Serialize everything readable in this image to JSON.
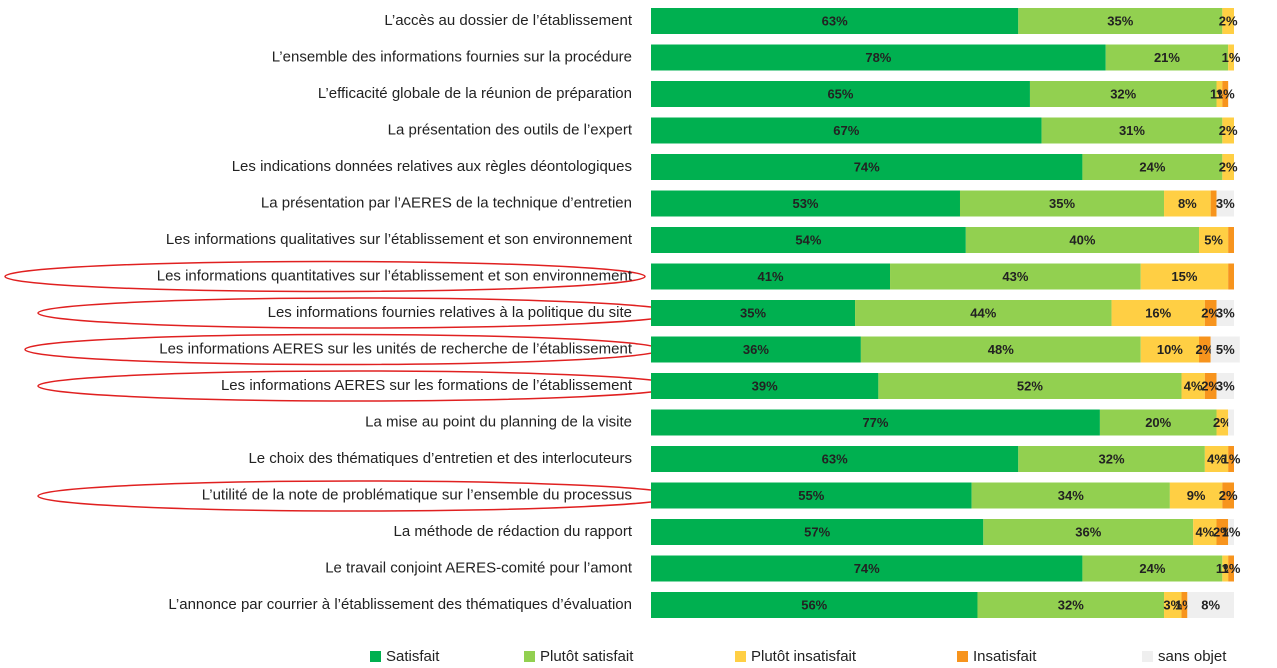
{
  "chart_data": {
    "type": "stacked-bar-horizontal",
    "categories": [
      "L’accès au dossier de l’établissement",
      "L’ensemble des informations fournies sur la procédure",
      "L’efficacité globale de la réunion de préparation",
      "La présentation des outils de l’expert",
      "Les indications données relatives aux règles déontologiques",
      "La présentation par l’AERES de la technique d’entretien",
      "Les informations qualitatives sur l’établissement et son environnement",
      "Les informations quantitatives sur l’établissement et son environnement",
      "Les informations fournies relatives à la politique du site",
      "Les informations AERES sur les unités de recherche de l’établissement",
      "Les informations AERES sur les formations de l’établissement",
      "La mise au point du planning de la visite",
      "Le choix des thématiques d’entretien et des interlocuteurs",
      "L’utilité de la note de problématique sur l’ensemble du processus",
      "La méthode de rédaction du rapport",
      "Le travail conjoint AERES-comité pour l’amont",
      "L’annonce par courrier à l’établissement des thématiques d’évaluation"
    ],
    "series": [
      {
        "name": "Satisfait",
        "color": "#00b050",
        "values": [
          63,
          78,
          65,
          67,
          74,
          53,
          54,
          41,
          35,
          36,
          39,
          77,
          63,
          55,
          57,
          74,
          56
        ],
        "value_labels": [
          "63%",
          "78%",
          "65%",
          "67%",
          "74%",
          "53%",
          "54%",
          "41%",
          "35%",
          "36%",
          "39%",
          "77%",
          "63%",
          "55%",
          "57%",
          "74%",
          "56%"
        ]
      },
      {
        "name": "Plutôt satisfait",
        "color": "#92d050",
        "values": [
          35,
          21,
          32,
          31,
          24,
          35,
          40,
          43,
          44,
          48,
          52,
          20,
          32,
          34,
          36,
          24,
          32
        ],
        "value_labels": [
          "35%",
          "21%",
          "32%",
          "31%",
          "24%",
          "35%",
          "40%",
          "43%",
          "44%",
          "48%",
          "52%",
          "20%",
          "32%",
          "34%",
          "36%",
          "24%",
          "32%"
        ]
      },
      {
        "name": "Plutôt insatisfait",
        "color": "#ffcf44",
        "values": [
          2,
          1,
          1,
          2,
          2,
          8,
          5,
          15,
          16,
          10,
          4,
          2,
          4,
          9,
          4,
          1,
          3
        ],
        "value_labels": [
          "2%",
          "1%",
          "1%",
          "2%",
          "2%",
          "8%",
          "5%",
          "15%",
          "16%",
          "10%",
          "4%",
          "2%",
          "4%",
          "9%",
          "4%",
          "1%",
          "3%"
        ]
      },
      {
        "name": "Insatisfait",
        "color": "#f7941d",
        "values": [
          0,
          0,
          1,
          0,
          0,
          1,
          1,
          1,
          2,
          2,
          2,
          0,
          1,
          2,
          2,
          1,
          1
        ],
        "value_labels": [
          null,
          null,
          "1%",
          null,
          null,
          null,
          null,
          null,
          "2%",
          "2%",
          "2%",
          null,
          "1%",
          "2%",
          "2%",
          "1%",
          "1%"
        ]
      },
      {
        "name": "sans objet",
        "color": "#efefef",
        "values": [
          0,
          0,
          0,
          0,
          0,
          3,
          0,
          0,
          3,
          5,
          3,
          1,
          0,
          0,
          1,
          0,
          8
        ],
        "value_labels": [
          null,
          null,
          null,
          null,
          null,
          "3%",
          null,
          null,
          "3%",
          "5%",
          "3%",
          null,
          null,
          null,
          "1%",
          null,
          "8%"
        ]
      }
    ],
    "xlim": [
      0,
      100
    ]
  }
}
